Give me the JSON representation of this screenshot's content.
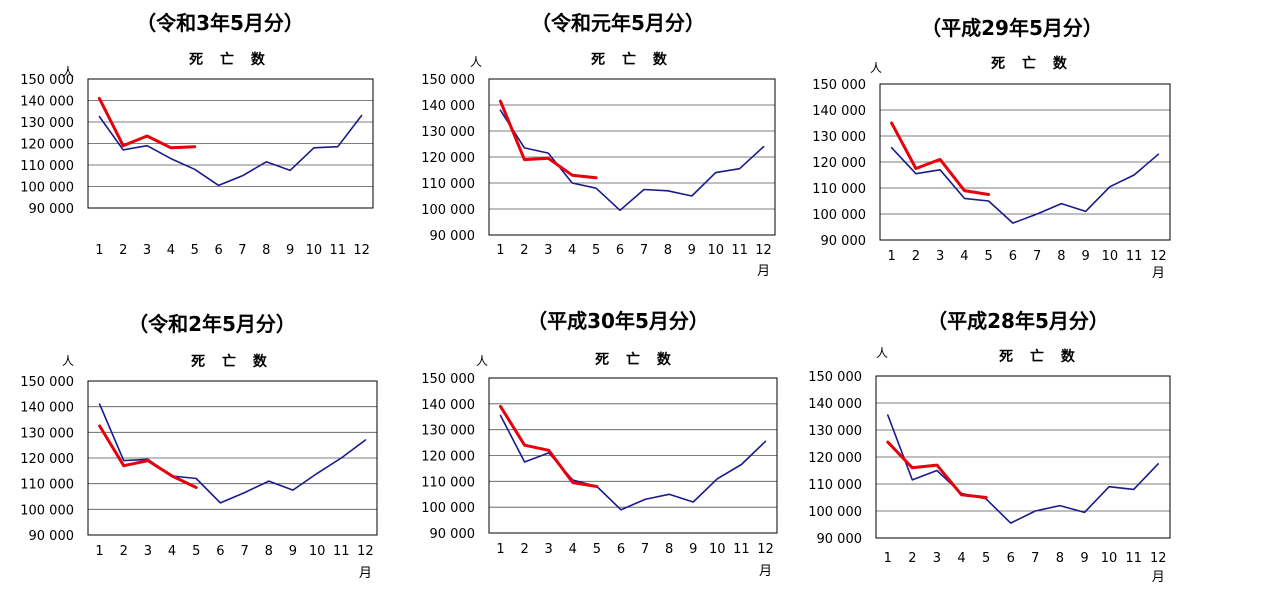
{
  "colors": {
    "current_year": "#e8000b",
    "comparison": "#1a1a8c",
    "grid": "#555555",
    "frame": "#000000"
  },
  "common": {
    "subtitle": "死 亡 数",
    "y_unit": "人",
    "x_unit": "月",
    "y_ticks": [
      "150 000",
      "140 000",
      "130 000",
      "120 000",
      "110 000",
      "100 000",
      "90 000"
    ],
    "x_ticks": [
      "1",
      "2",
      "3",
      "4",
      "5",
      "6",
      "7",
      "8",
      "9",
      "10",
      "11",
      "12"
    ]
  },
  "chart_data": [
    {
      "type": "line",
      "title": "（令和3年5月分）",
      "subtitle": "死 亡 数",
      "ylabel": "人",
      "xlabel": "",
      "ylim": [
        90000,
        150000
      ],
      "categories": [
        "1",
        "2",
        "3",
        "4",
        "5",
        "6",
        "7",
        "8",
        "9",
        "10",
        "11",
        "12"
      ],
      "series": [
        {
          "color": "#e8000b",
          "values": [
            141000,
            119000,
            123500,
            118000,
            118500,
            null,
            null,
            null,
            null,
            null,
            null,
            null
          ]
        },
        {
          "color": "#1a1a8c",
          "values": [
            132500,
            117000,
            119000,
            113000,
            108000,
            100500,
            105000,
            111500,
            107500,
            118000,
            118500,
            133000
          ]
        }
      ]
    },
    {
      "type": "line",
      "title": "（令和元年5月分）",
      "subtitle": "死 亡 数",
      "ylabel": "人",
      "xlabel": "月",
      "ylim": [
        90000,
        150000
      ],
      "categories": [
        "1",
        "2",
        "3",
        "4",
        "5",
        "6",
        "7",
        "8",
        "9",
        "10",
        "11",
        "12"
      ],
      "series": [
        {
          "color": "#e8000b",
          "values": [
            141500,
            119000,
            119500,
            113000,
            112000,
            null,
            null,
            null,
            null,
            null,
            null,
            null
          ]
        },
        {
          "color": "#1a1a8c",
          "values": [
            138000,
            123500,
            121500,
            110000,
            108000,
            99500,
            107500,
            107000,
            105000,
            114000,
            115500,
            124000
          ]
        }
      ]
    },
    {
      "type": "line",
      "title": "（平成29年5月分）",
      "subtitle": "死 亡 数",
      "ylabel": "人",
      "xlabel": "月",
      "ylim": [
        90000,
        150000
      ],
      "categories": [
        "1",
        "2",
        "3",
        "4",
        "5",
        "6",
        "7",
        "8",
        "9",
        "10",
        "11",
        "12"
      ],
      "series": [
        {
          "color": "#e8000b",
          "values": [
            135000,
            117500,
            121000,
            109000,
            107500,
            null,
            null,
            null,
            null,
            null,
            null,
            null
          ]
        },
        {
          "color": "#1a1a8c",
          "values": [
            125500,
            115500,
            117000,
            106000,
            105000,
            96500,
            100000,
            104000,
            101000,
            110500,
            115000,
            123000
          ]
        }
      ]
    },
    {
      "type": "line",
      "title": "（令和2年5月分）",
      "subtitle": "死 亡 数",
      "ylabel": "人",
      "xlabel": "月",
      "ylim": [
        90000,
        150000
      ],
      "categories": [
        "1",
        "2",
        "3",
        "4",
        "5",
        "6",
        "7",
        "8",
        "9",
        "10",
        "11",
        "12"
      ],
      "series": [
        {
          "color": "#e8000b",
          "values": [
            132500,
            117000,
            119000,
            113000,
            108500,
            null,
            null,
            null,
            null,
            null,
            null,
            null
          ]
        },
        {
          "color": "#1a1a8c",
          "values": [
            141000,
            119000,
            119500,
            113000,
            112000,
            102500,
            106500,
            111000,
            107500,
            114000,
            120000,
            127000
          ]
        }
      ]
    },
    {
      "type": "line",
      "title": "（平成30年5月分）",
      "subtitle": "死 亡 数",
      "ylabel": "人",
      "xlabel": "月",
      "ylim": [
        90000,
        150000
      ],
      "categories": [
        "1",
        "2",
        "3",
        "4",
        "5",
        "6",
        "7",
        "8",
        "9",
        "10",
        "11",
        "12"
      ],
      "series": [
        {
          "color": "#e8000b",
          "values": [
            139000,
            124000,
            122000,
            109500,
            108000,
            null,
            null,
            null,
            null,
            null,
            null,
            null
          ]
        },
        {
          "color": "#1a1a8c",
          "values": [
            135500,
            117500,
            121000,
            110500,
            108000,
            99000,
            103000,
            105000,
            102000,
            111000,
            116500,
            125500
          ]
        }
      ]
    },
    {
      "type": "line",
      "title": "（平成28年5月分）",
      "subtitle": "死 亡 数",
      "ylabel": "人",
      "xlabel": "月",
      "ylim": [
        90000,
        150000
      ],
      "categories": [
        "1",
        "2",
        "3",
        "4",
        "5",
        "6",
        "7",
        "8",
        "9",
        "10",
        "11",
        "12"
      ],
      "series": [
        {
          "color": "#e8000b",
          "values": [
            125500,
            116000,
            117000,
            106000,
            105000,
            null,
            null,
            null,
            null,
            null,
            null,
            null
          ]
        },
        {
          "color": "#1a1a8c",
          "values": [
            135500,
            111500,
            115000,
            106500,
            104500,
            95500,
            100000,
            102000,
            99500,
            109000,
            108000,
            117500
          ]
        }
      ]
    }
  ]
}
